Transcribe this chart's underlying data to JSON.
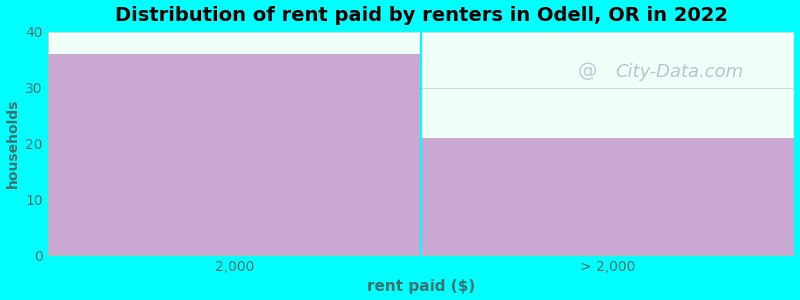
{
  "categories": [
    "2,000",
    "> 2,000"
  ],
  "values": [
    36,
    21
  ],
  "bar_color": "#C9A8D4",
  "background_color": "#00FFFF",
  "plot_bg_color": "#F0FFF8",
  "title": "Distribution of rent paid by renters in Odell, OR in 2022",
  "title_fontsize": 14,
  "title_fontweight": "bold",
  "xlabel": "rent paid ($)",
  "ylabel": "households",
  "xlabel_fontsize": 11,
  "ylabel_fontsize": 10,
  "label_color": "#3A7070",
  "tick_color": "#3A7070",
  "ylim": [
    0,
    40
  ],
  "yticks": [
    0,
    10,
    20,
    30,
    40
  ],
  "watermark": "City-Data.com",
  "watermark_color": "#A8BEC8",
  "watermark_fontsize": 13,
  "grid_color": "#D0D8D0",
  "spine_color": "#B0C0B0"
}
